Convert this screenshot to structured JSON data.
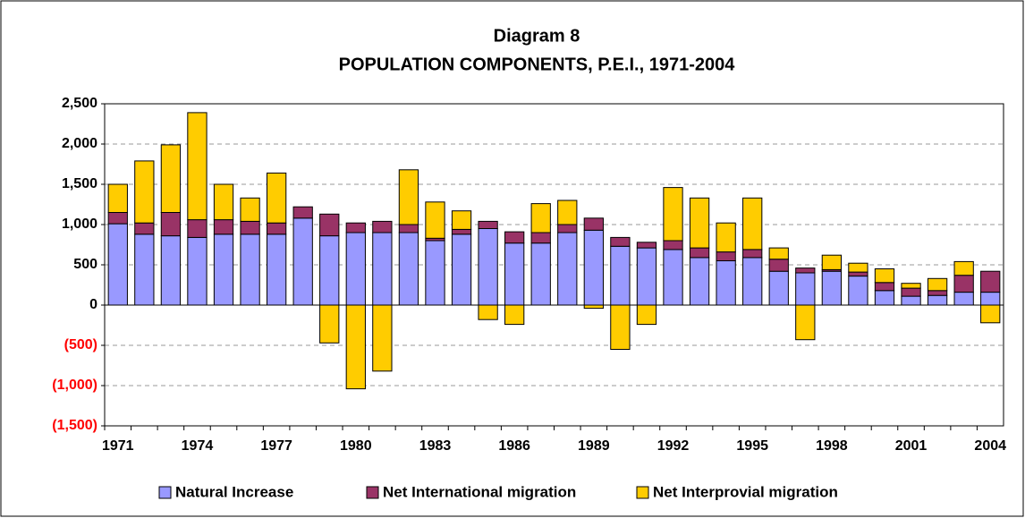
{
  "chart_data": {
    "type": "stacked_bar",
    "title": "Diagram 8",
    "subtitle": "POPULATION COMPONENTS, P.E.I., 1971-2004",
    "categories": [
      "1971",
      null,
      null,
      "1974",
      null,
      null,
      "1977",
      null,
      null,
      "1980",
      null,
      null,
      "1983",
      null,
      null,
      "1986",
      null,
      null,
      "1989",
      null,
      null,
      "1992",
      null,
      null,
      "1995",
      null,
      null,
      "1998",
      null,
      null,
      "2001",
      null,
      null,
      "2004"
    ],
    "series": [
      {
        "name": "Natural Increase",
        "color": "#9999ff",
        "values": [
          1010,
          880,
          860,
          840,
          880,
          880,
          880,
          1080,
          860,
          900,
          900,
          900,
          800,
          880,
          950,
          770,
          770,
          900,
          930,
          730,
          710,
          690,
          590,
          550,
          590,
          420,
          400,
          420,
          360,
          180,
          110,
          120,
          160,
          160
        ]
      },
      {
        "name": "Net International migration",
        "color": "#993366",
        "values": [
          140,
          140,
          290,
          220,
          180,
          160,
          140,
          140,
          270,
          120,
          140,
          100,
          30,
          60,
          90,
          140,
          130,
          100,
          150,
          110,
          70,
          110,
          120,
          110,
          100,
          150,
          60,
          20,
          50,
          100,
          100,
          60,
          210,
          260
        ]
      },
      {
        "name": "Net Interprovial migration",
        "color": "#ffcc00",
        "values": [
          350,
          770,
          840,
          1330,
          440,
          290,
          620,
          0,
          -470,
          -1040,
          -820,
          680,
          450,
          230,
          -180,
          -240,
          360,
          300,
          -40,
          -550,
          -240,
          660,
          620,
          360,
          640,
          140,
          -430,
          180,
          110,
          170,
          60,
          150,
          170,
          -220
        ]
      }
    ],
    "ylim": [
      -1500,
      2500
    ],
    "yticks": [
      {
        "value": -1500,
        "label": "(1,500)"
      },
      {
        "value": -1000,
        "label": "(1,000)"
      },
      {
        "value": -500,
        "label": "(500)"
      },
      0,
      {
        "value": 500,
        "label": "500"
      },
      {
        "value": 1000,
        "label": "1,000"
      },
      {
        "value": 1500,
        "label": "1,500"
      },
      {
        "value": 2000,
        "label": "2,000"
      },
      {
        "value": 2500,
        "label": "2,500"
      }
    ],
    "negative_tick_color": "#ff0000",
    "grid": true,
    "legend": "bottom"
  }
}
